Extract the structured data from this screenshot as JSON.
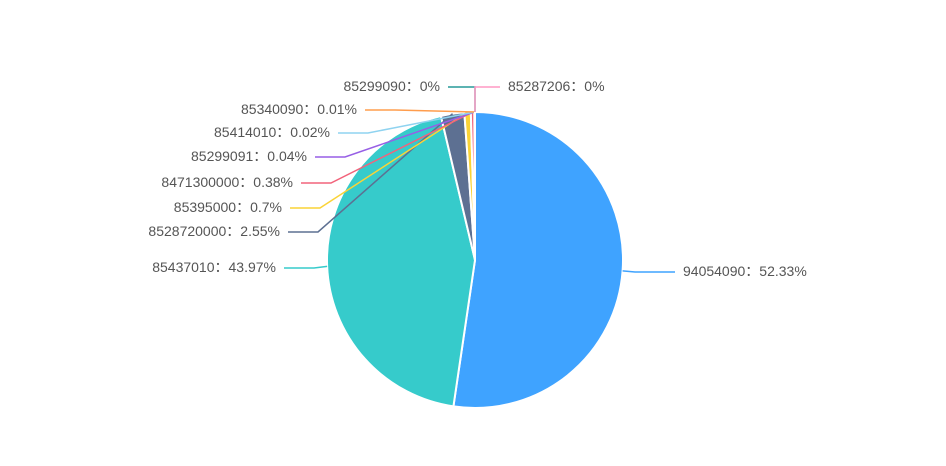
{
  "chart_data": {
    "type": "pie",
    "categories": [
      "94054090",
      "85437010",
      "8528720000",
      "85395000",
      "8471300000",
      "85299091",
      "85414010",
      "85340090",
      "85299090",
      "85287206"
    ],
    "values": [
      52.33,
      43.97,
      2.55,
      0.7,
      0.38,
      0.04,
      0.02,
      0.01,
      0,
      0
    ],
    "value_labels": [
      "52.33%",
      "43.97%",
      "2.55%",
      "0.7%",
      "0.38%",
      "0.04%",
      "0.02%",
      "0.01%",
      "0%",
      "0%"
    ],
    "label_separator": "：",
    "colors": [
      "#3fa3ff",
      "#36cbcb",
      "#5d7092",
      "#fad337",
      "#f2637b",
      "#975fe5",
      "#8fd3f0",
      "#ff9d4d",
      "#269a99",
      "#ff99c3"
    ]
  }
}
